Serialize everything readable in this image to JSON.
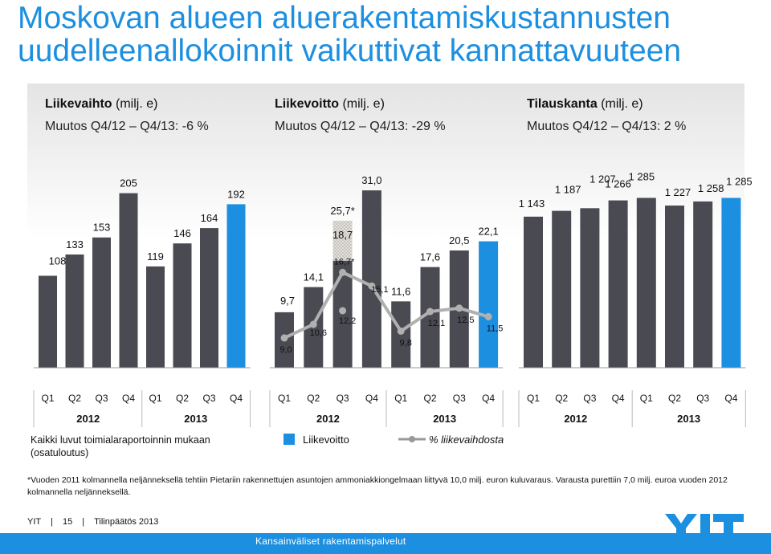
{
  "title": "Moskovan alueen aluerakentamiskustannusten uudelleenallokoinnit vaikuttivat kannattavuuteen",
  "panels": [
    {
      "head_bold": "Liikevaihto",
      "head_rest": " (milj. e)",
      "change": "Muutos Q4/12 – Q4/13: -6 %"
    },
    {
      "head_bold": "Liikevoitto",
      "head_rest": " (milj. e)",
      "change": "Muutos Q4/12 – Q4/13: -29 %"
    },
    {
      "head_bold": "Tilauskanta",
      "head_rest": " (milj. e)",
      "change": "Muutos Q4/12 – Q4/13: 2 %"
    }
  ],
  "note": "Kaikki luvut toimialaraportoinnin mukaan (osatuloutus)",
  "legend": {
    "bar_label": "Liikevoitto",
    "line_label": "% liikevaihdosta"
  },
  "footnote": "*Vuoden 2011 kolmannella neljänneksellä tehtiin Pietariin rakennettujen asuntojen ammoniakkiongelmaan liittyvä 10,0 milj. euron kuluvaraus. Varausta purettiin 7,0 milj. euroa vuoden 2012 kolmannella neljänneksellä.",
  "footer": {
    "company": "YIT",
    "page": "15",
    "doc": "Tilinpäätös 2013"
  },
  "bottom_bar_text": "Kansainväliset rakentamispalvelut",
  "colors": {
    "bar": "#4a4a52",
    "highlight": "#1d8fe0",
    "line": "#b0b0b0",
    "title": "#1d8fe0"
  },
  "chart_data": [
    {
      "type": "bar",
      "categories": [
        "Q1",
        "Q2",
        "Q3",
        "Q4",
        "Q1",
        "Q2",
        "Q3",
        "Q4"
      ],
      "years": [
        "2012",
        "2013"
      ],
      "values": [
        108,
        133,
        153,
        205,
        119,
        146,
        164,
        192
      ],
      "labels": [
        "108",
        "133",
        "153",
        "205",
        "119",
        "146",
        "164",
        "192"
      ],
      "highlight_index": 7,
      "ylim": [
        0,
        215
      ]
    },
    {
      "type": "bar",
      "categories": [
        "Q1",
        "Q2",
        "Q3",
        "Q4",
        "Q1",
        "Q2",
        "Q3",
        "Q4"
      ],
      "years": [
        "2012",
        "2013"
      ],
      "values": [
        9.7,
        14.1,
        18.7,
        31.0,
        11.6,
        17.6,
        20.5,
        22.1
      ],
      "labels": [
        "9,7",
        "14,1",
        "18,7",
        "31,0",
        "11,6",
        "17,6",
        "20,5",
        "22,1"
      ],
      "highlight_index": 7,
      "adjusted": {
        "index": 2,
        "value": 25.7,
        "label": "25,7*"
      },
      "ylim": [
        0,
        32
      ],
      "line_series": {
        "name": "% liikevaihdosta",
        "values": [
          9.0,
          10.6,
          12.2,
          15.1,
          9.8,
          12.1,
          12.5,
          11.5
        ],
        "labels": [
          "9,0",
          "10,6",
          "12,2",
          "15,1",
          "9,8",
          "12,1",
          "12,5",
          "11,5"
        ],
        "adjusted": {
          "index": 2,
          "value": 16.7,
          "label": "16,7*"
        }
      }
    },
    {
      "type": "bar",
      "categories": [
        "Q1",
        "Q2",
        "Q3",
        "Q4",
        "Q1",
        "Q2",
        "Q3",
        "Q4"
      ],
      "years": [
        "2012",
        "2013"
      ],
      "values": [
        1143,
        1187,
        1207,
        1266,
        1285,
        1227,
        1258,
        1285
      ],
      "labels": [
        "1 143",
        "1 187",
        "1 207",
        "1 266",
        "1 285",
        "1 227",
        "1 258",
        "1 285"
      ],
      "highlight_index": 7,
      "ylim": [
        0,
        1300
      ]
    }
  ]
}
